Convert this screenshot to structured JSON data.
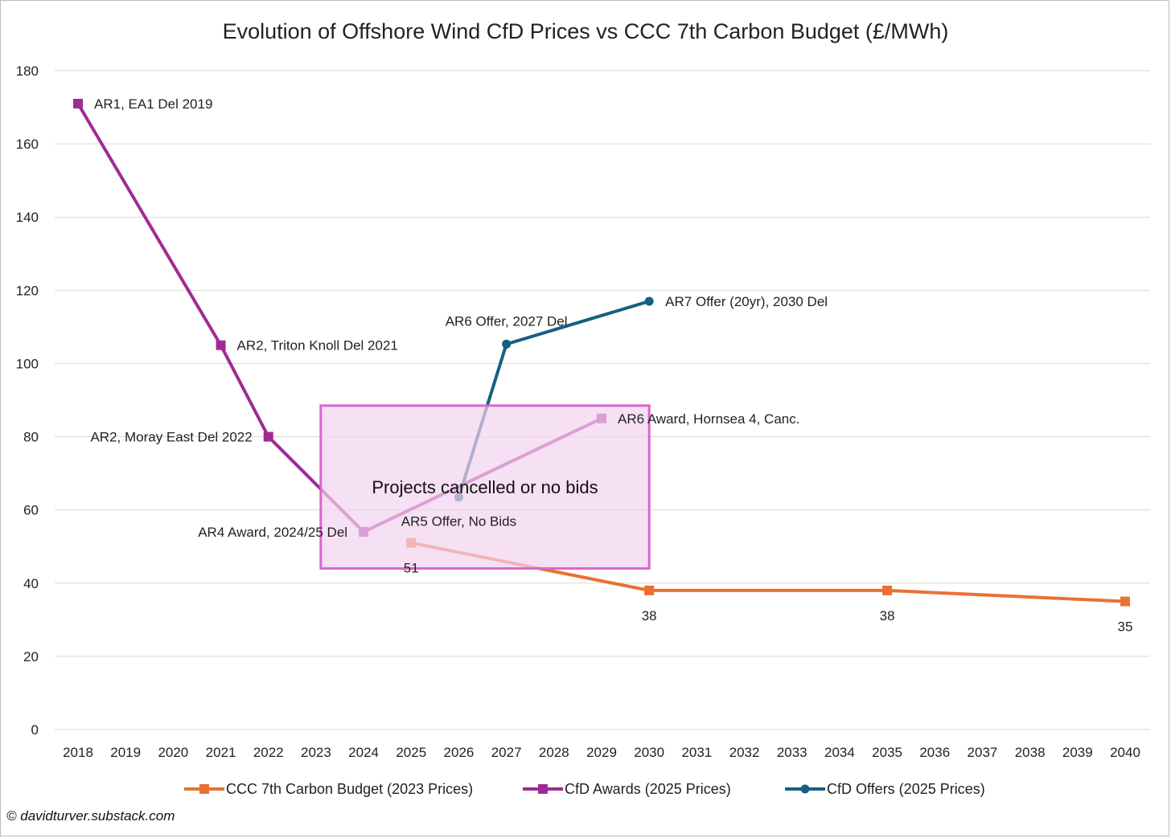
{
  "chart_data": {
    "type": "line",
    "title": "Evolution of Offshore Wind CfD Prices vs CCC 7th Carbon Budget (£/MWh)",
    "xlabel": "",
    "ylabel": "",
    "x": [
      2018,
      2019,
      2020,
      2021,
      2022,
      2023,
      2024,
      2025,
      2026,
      2027,
      2028,
      2029,
      2030,
      2031,
      2032,
      2033,
      2034,
      2035,
      2036,
      2037,
      2038,
      2039,
      2040
    ],
    "x_tick_labels": [
      "2018",
      "2019",
      "2020",
      "2021",
      "2022",
      "2023",
      "2024",
      "2025",
      "2026",
      "2027",
      "2028",
      "2029",
      "2030",
      "2031",
      "2032",
      "2033",
      "2034",
      "2035",
      "2036",
      "2037",
      "2038",
      "2039",
      "2040"
    ],
    "ylim": [
      0,
      180
    ],
    "y_tick_labels": [
      "0",
      "20",
      "40",
      "60",
      "80",
      "100",
      "120",
      "140",
      "160",
      "180"
    ],
    "grid": true,
    "legend_placement": "bottom",
    "series": [
      {
        "name": "CCC 7th Carbon Budget (2023 Prices)",
        "color": "#E97132",
        "marker": "square",
        "points": [
          {
            "x": 2025,
            "y": 51,
            "label": "51"
          },
          {
            "x": 2030,
            "y": 38,
            "label": "38"
          },
          {
            "x": 2035,
            "y": 38,
            "label": "38"
          },
          {
            "x": 2040,
            "y": 35,
            "label": "35"
          }
        ]
      },
      {
        "name": "CfD Awards (2025 Prices)",
        "color": "#A02B93",
        "marker": "square",
        "points": [
          {
            "x": 2018,
            "y": 171,
            "label": "AR1, EA1 Del 2019"
          },
          {
            "x": 2021,
            "y": 105,
            "label": "AR2, Triton Knoll Del 2021"
          },
          {
            "x": 2022,
            "y": 80,
            "label": "AR2, Moray East Del 2022"
          },
          {
            "x": 2024,
            "y": 54,
            "label": "AR4 Award, 2024/25 Del"
          },
          {
            "x": 2029,
            "y": 85,
            "label": "AR6 Award, Hornsea 4, Canc."
          }
        ]
      },
      {
        "name": "CfD Offers (2025 Prices)",
        "color": "#156082",
        "marker": "circle",
        "points": [
          {
            "x": 2026,
            "y": 63.5,
            "label": "AR5 Offer, No Bids"
          },
          {
            "x": 2027,
            "y": 105.3,
            "label": "AR6 Offer, 2027 Del"
          },
          {
            "x": 2030,
            "y": 117,
            "label": "AR7 Offer (20yr), 2030 Del"
          }
        ]
      }
    ],
    "annotation": {
      "text": "Projects cancelled or no bids",
      "x_range": [
        2023.1,
        2030
      ],
      "y_range": [
        44,
        88.5
      ],
      "fill": "#F2D3F0",
      "stroke": "#D966CF"
    }
  },
  "footer": {
    "copyright": "© davidturver.substack.com"
  }
}
